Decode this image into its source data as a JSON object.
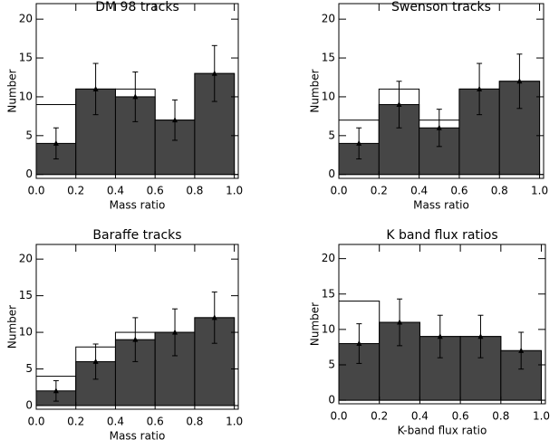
{
  "chart_data": [
    {
      "type": "histogram",
      "title": "DM 98 tracks",
      "xlabel": "Mass ratio",
      "ylabel": "Number",
      "bins": [
        0,
        0.2,
        0.4,
        0.6,
        0.8,
        1.0
      ],
      "series": [
        {
          "color": "#ffffff",
          "values": [
            9,
            11,
            11,
            7,
            13
          ]
        },
        {
          "color": "#464646",
          "values": [
            4,
            11,
            10,
            7,
            13
          ]
        }
      ],
      "points": {
        "x": [
          0.1,
          0.3,
          0.5,
          0.7,
          0.9
        ],
        "values": [
          4,
          11,
          10,
          7,
          13
        ],
        "errors": [
          2,
          3.3,
          3.2,
          2.6,
          3.6
        ]
      },
      "xlim": [
        0,
        1.02
      ],
      "ylim": [
        -0.5,
        22
      ],
      "xticks": [
        {
          "value": 0,
          "label": "0.0"
        },
        0.2,
        0.4,
        0.6,
        0.8,
        {
          "value": 1,
          "label": "1.0"
        }
      ],
      "yticks": [
        0,
        5,
        10,
        15,
        20
      ]
    },
    {
      "type": "histogram",
      "title": "Swenson tracks",
      "xlabel": "Mass ratio",
      "ylabel": "Number",
      "bins": [
        0,
        0.2,
        0.4,
        0.6,
        0.8,
        1.0
      ],
      "series": [
        {
          "color": "#ffffff",
          "values": [
            7,
            11,
            7,
            11,
            12
          ]
        },
        {
          "color": "#464646",
          "values": [
            4,
            9,
            6,
            11,
            12
          ]
        }
      ],
      "points": {
        "x": [
          0.1,
          0.3,
          0.5,
          0.7,
          0.9
        ],
        "values": [
          4,
          9,
          6,
          11,
          12
        ],
        "errors": [
          2,
          3,
          2.4,
          3.3,
          3.5
        ]
      },
      "xlim": [
        0,
        1.02
      ],
      "ylim": [
        -0.5,
        22
      ],
      "xticks": [
        {
          "value": 0,
          "label": "0.0"
        },
        0.2,
        0.4,
        0.6,
        0.8,
        {
          "value": 1,
          "label": "1.0"
        }
      ],
      "yticks": [
        0,
        5,
        10,
        15,
        20
      ]
    },
    {
      "type": "histogram",
      "title": "Baraffe tracks",
      "xlabel": "Mass ratio",
      "ylabel": "Number",
      "bins": [
        0,
        0.2,
        0.4,
        0.6,
        0.8,
        1.0
      ],
      "series": [
        {
          "color": "#ffffff",
          "values": [
            4,
            8,
            10,
            10,
            12
          ]
        },
        {
          "color": "#464646",
          "values": [
            2,
            6,
            9,
            10,
            12
          ]
        }
      ],
      "points": {
        "x": [
          0.1,
          0.3,
          0.5,
          0.7,
          0.9
        ],
        "values": [
          2,
          6,
          9,
          10,
          12
        ],
        "errors": [
          1.4,
          2.4,
          3,
          3.2,
          3.5
        ]
      },
      "xlim": [
        0,
        1.02
      ],
      "ylim": [
        -0.5,
        22
      ],
      "xticks": [
        {
          "value": 0,
          "label": "0.0"
        },
        0.2,
        0.4,
        0.6,
        0.8,
        {
          "value": 1,
          "label": "1.0"
        }
      ],
      "yticks": [
        0,
        5,
        10,
        15,
        20
      ]
    },
    {
      "type": "histogram",
      "title": "K band flux ratios",
      "xlabel": "K-band flux ratio",
      "ylabel": "Number",
      "bins": [
        0,
        0.2,
        0.4,
        0.6,
        0.8,
        1.0
      ],
      "series": [
        {
          "color": "#ffffff",
          "values": [
            14,
            11,
            9,
            9,
            7
          ]
        },
        {
          "color": "#464646",
          "values": [
            8,
            11,
            9,
            9,
            7
          ]
        }
      ],
      "points": {
        "x": [
          0.1,
          0.3,
          0.5,
          0.7,
          0.9
        ],
        "values": [
          8,
          11,
          9,
          9,
          7
        ],
        "errors": [
          2.8,
          3.3,
          3,
          3,
          2.6
        ]
      },
      "xlim": [
        0,
        1.02
      ],
      "ylim": [
        -0.5,
        22
      ],
      "xticks": [
        {
          "value": 0,
          "label": "0.0"
        },
        0.2,
        0.4,
        0.6,
        0.8,
        {
          "value": 1,
          "label": "1.0"
        }
      ],
      "yticks": [
        0,
        5,
        10,
        15,
        20
      ]
    }
  ]
}
